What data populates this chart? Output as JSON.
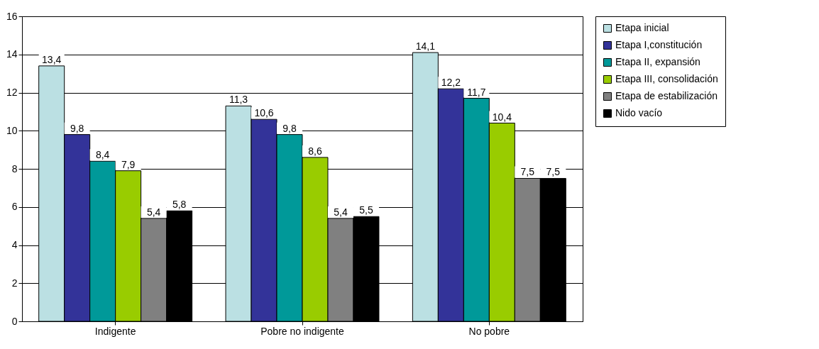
{
  "chart_data": {
    "type": "bar",
    "categories": [
      "Indigente",
      "Pobre no indigente",
      "No pobre"
    ],
    "series": [
      {
        "name": "Etapa inicial",
        "color": "#bbe0e3",
        "values": [
          13.4,
          11.3,
          14.1
        ],
        "value_labels": [
          "13,4",
          "11,3",
          "14,1"
        ]
      },
      {
        "name": "Etapa I,constitución",
        "color": "#333399",
        "values": [
          9.8,
          10.6,
          12.2
        ],
        "value_labels": [
          "9,8",
          "10,6",
          "12,2"
        ]
      },
      {
        "name": "Etapa II, expansión",
        "color": "#009999",
        "values": [
          8.4,
          9.8,
          11.7
        ],
        "value_labels": [
          "8,4",
          "9,8",
          "11,7"
        ]
      },
      {
        "name": "Etapa III, consolidación",
        "color": "#99cc00",
        "values": [
          7.9,
          8.6,
          10.4
        ],
        "value_labels": [
          "7,9",
          "8,6",
          "10,4"
        ]
      },
      {
        "name": "Etapa de estabilización",
        "color": "#808080",
        "values": [
          5.4,
          5.4,
          7.5
        ],
        "value_labels": [
          "5,4",
          "5,4",
          "7,5"
        ]
      },
      {
        "name": "Nido vacío",
        "color": "#000000",
        "values": [
          5.8,
          5.5,
          7.5
        ],
        "value_labels": [
          "5,8",
          "5,5",
          "7,5"
        ]
      }
    ],
    "ylim": [
      0,
      16
    ],
    "yticks": [
      0,
      2,
      4,
      6,
      8,
      10,
      12,
      14,
      16
    ],
    "grid": "y",
    "legend": "right"
  }
}
